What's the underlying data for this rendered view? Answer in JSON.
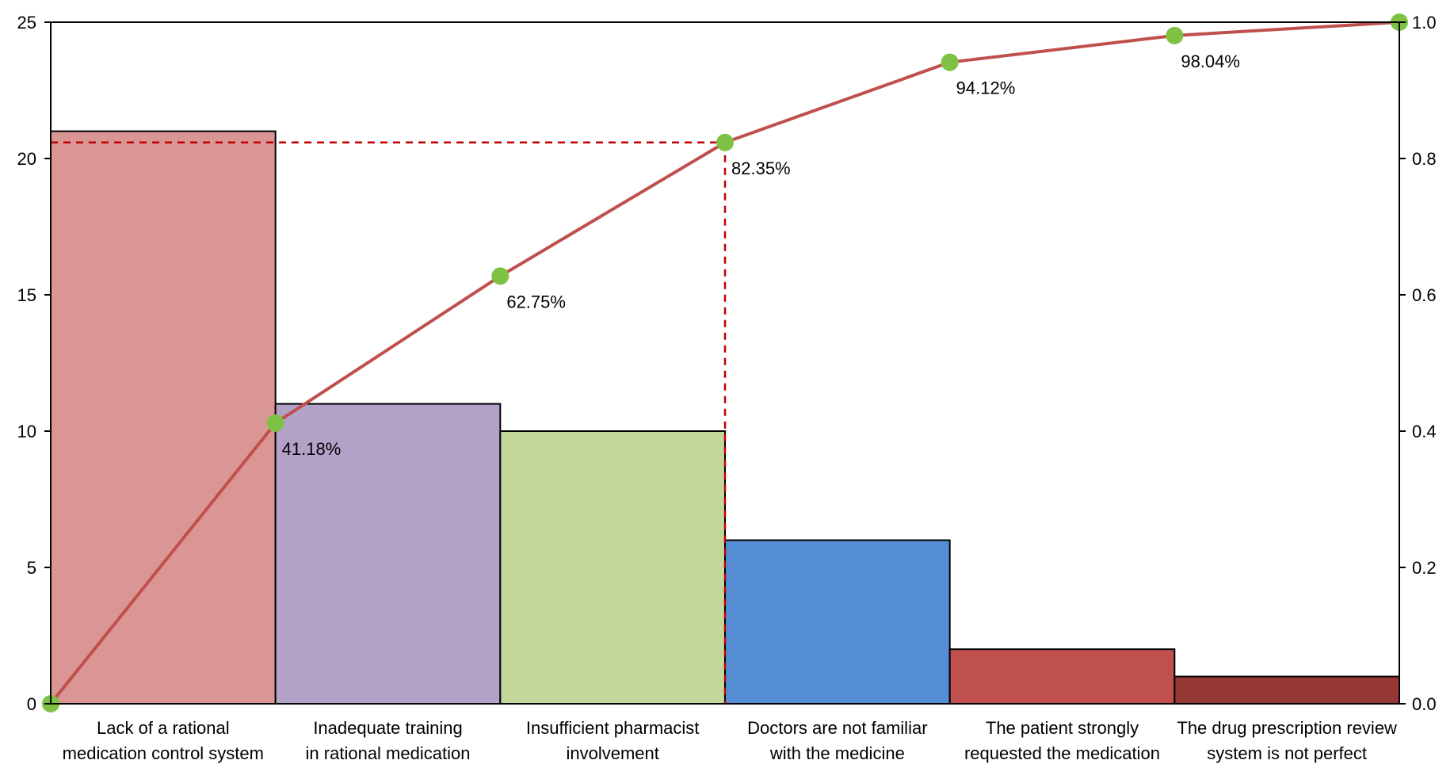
{
  "chart_data": {
    "type": "bar",
    "subtype": "pareto",
    "categories": [
      [
        "Lack of a rational",
        "medication control system"
      ],
      [
        "Inadequate training",
        "in rational medication"
      ],
      [
        "Insufficient pharmacist",
        "involvement"
      ],
      [
        "Doctors are not familiar",
        "with the medicine"
      ],
      [
        "The patient strongly",
        "requested the medication"
      ],
      [
        "The drug prescription review",
        "system is not perfect"
      ]
    ],
    "values": [
      21,
      11,
      10,
      6,
      2,
      1
    ],
    "bar_colors": [
      "#D99694",
      "#B3A2C7",
      "#C4D79B",
      "#558ED5",
      "#C0504D",
      "#953735"
    ],
    "cumulative": {
      "x_positions": [
        0,
        1,
        2,
        3,
        4,
        5,
        6
      ],
      "values": [
        0,
        0.4118,
        0.6275,
        0.8235,
        0.9412,
        0.9804,
        1.0
      ],
      "labels": [
        "",
        "41.18%",
        "62.75%",
        "82.35%",
        "94.12%",
        "98.04%",
        ""
      ],
      "line_color": "#C0504D",
      "marker_color": "#7DC242"
    },
    "threshold": {
      "value": 0.8235,
      "category_boundary": 3,
      "line_color": "#C00000"
    },
    "y_left": {
      "ylim": [
        0,
        25
      ],
      "ticks": [
        "0",
        "5",
        "10",
        "15",
        "20",
        "25"
      ]
    },
    "y_right": {
      "ylim": [
        0,
        1.0
      ],
      "ticks": [
        "0.0",
        "0.2",
        "0.4",
        "0.6",
        "0.8",
        "1.0"
      ]
    },
    "title": "",
    "xlabel": "",
    "ylabel": "",
    "grid": false,
    "legend": "none"
  }
}
